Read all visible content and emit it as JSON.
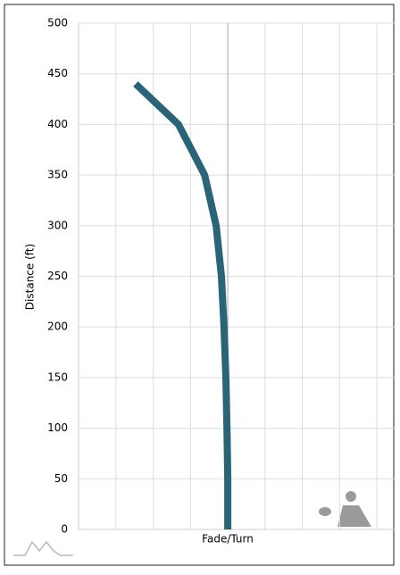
{
  "chart_data": {
    "type": "line",
    "x_label": "Fade/Turn",
    "y_label": "Distance (ft)",
    "x": [
      0,
      0,
      -0.02,
      -0.05,
      -0.1,
      -0.17,
      -0.31,
      -0.62,
      -1.32,
      -2.47
    ],
    "values": [
      0,
      50,
      100,
      150,
      200,
      250,
      300,
      350,
      400,
      440
    ],
    "color": "#2a6478",
    "xlim": [
      -4,
      4.5
    ],
    "xticks": [
      -3,
      -2,
      -1,
      0,
      1,
      2,
      3,
      4
    ],
    "ylim": [
      0,
      500
    ],
    "yticks": [
      0,
      50,
      100,
      150,
      200,
      250,
      300,
      350,
      400,
      450,
      500
    ],
    "grid": true
  }
}
